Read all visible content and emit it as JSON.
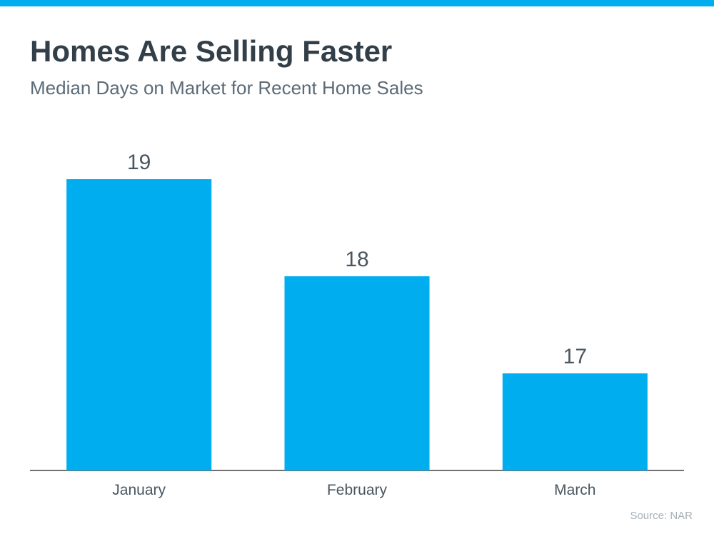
{
  "chart_data": {
    "type": "bar",
    "title": "Homes Are Selling Faster",
    "subtitle": "Median Days on Market for Recent Home Sales",
    "categories": [
      "January",
      "February",
      "March"
    ],
    "values": [
      19,
      18,
      17
    ],
    "color": "#00aeef",
    "ylim": [
      16,
      19
    ],
    "grid": false,
    "source": "Source: NAR"
  }
}
